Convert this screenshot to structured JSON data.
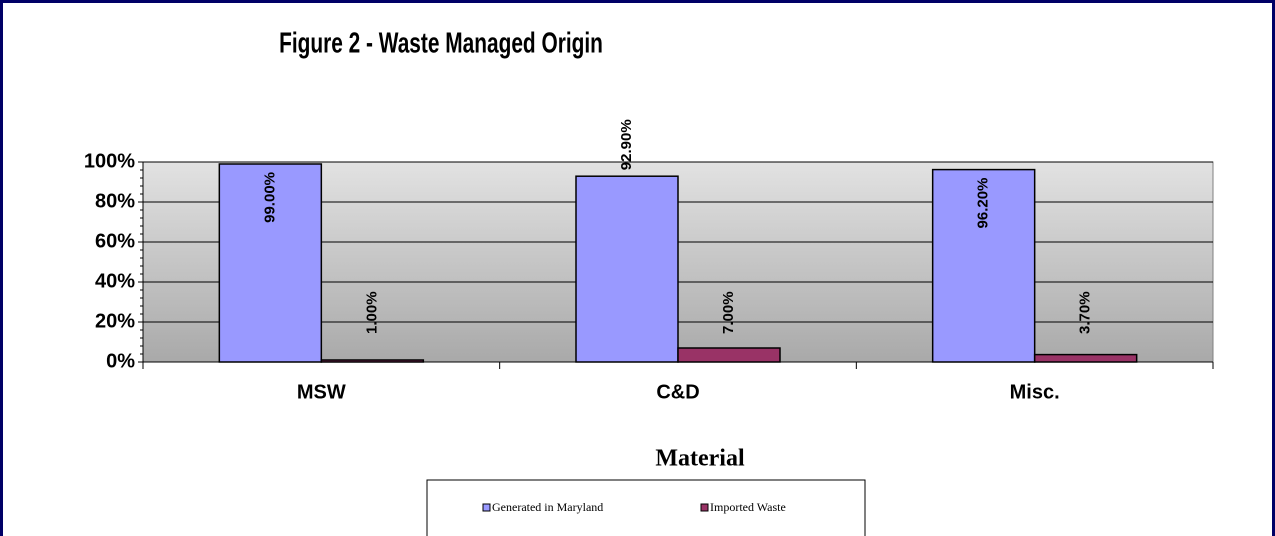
{
  "chart_data": {
    "type": "bar",
    "title": "Figure 2 - Waste Managed Origin",
    "x_label": "Material",
    "categories": [
      "MSW",
      "C&D",
      "Misc."
    ],
    "series": [
      {
        "name": "Generated in Maryland",
        "color": "#9999ff",
        "values": [
          99,
          92.9,
          96.2
        ],
        "value_labels": [
          "99.00%",
          "92.90%",
          "96.20%"
        ]
      },
      {
        "name": "Imported Waste",
        "color": "#993366",
        "values": [
          1,
          7,
          3.7
        ],
        "value_labels": [
          "1.00%",
          "7.00%",
          "3.70%"
        ]
      }
    ],
    "ylim": [
      0,
      100
    ],
    "yticks": [
      {
        "value": 0,
        "label": "0%"
      },
      {
        "value": 20,
        "label": "20%"
      },
      {
        "value": 40,
        "label": "40%"
      },
      {
        "value": 60,
        "label": "60%"
      },
      {
        "value": 80,
        "label": "80%"
      },
      {
        "value": 100,
        "label": "100%"
      }
    ],
    "grid": true,
    "legend": "bottom"
  }
}
